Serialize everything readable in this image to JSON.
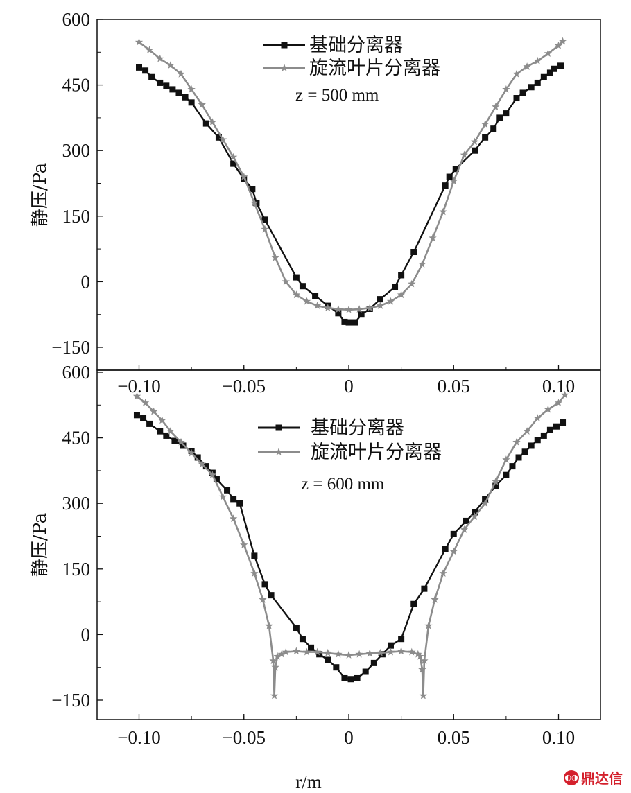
{
  "chart_data": [
    {
      "type": "line",
      "annotation": "z = 500 mm",
      "ylabel": "静压/Pa",
      "xlabel": "",
      "xlim": [
        -0.12,
        0.12
      ],
      "ylim": [
        -200,
        600
      ],
      "xticks": [
        "−0.10",
        "−0.05",
        "0",
        "0.05",
        "0.10"
      ],
      "yticks": [
        "600",
        "450",
        "300",
        "150",
        "0",
        "−150"
      ],
      "legend_position": "top-center",
      "series": [
        {
          "name": "基础分离器",
          "color": "#111111",
          "marker": "square",
          "points": [
            [
              -0.1,
              490
            ],
            [
              -0.097,
              483
            ],
            [
              -0.094,
              468
            ],
            [
              -0.09,
              455
            ],
            [
              -0.087,
              448
            ],
            [
              -0.084,
              440
            ],
            [
              -0.081,
              432
            ],
            [
              -0.078,
              422
            ],
            [
              -0.075,
              410
            ],
            [
              -0.068,
              362
            ],
            [
              -0.062,
              330
            ],
            [
              -0.055,
              270
            ],
            [
              -0.05,
              235
            ],
            [
              -0.046,
              212
            ],
            [
              -0.044,
              180
            ],
            [
              -0.04,
              142
            ],
            [
              -0.025,
              10
            ],
            [
              -0.022,
              -10
            ],
            [
              -0.016,
              -32
            ],
            [
              -0.01,
              -55
            ],
            [
              -0.005,
              -72
            ],
            [
              -0.002,
              -92
            ],
            [
              0.0,
              -93
            ],
            [
              0.003,
              -93
            ],
            [
              0.006,
              -75
            ],
            [
              0.01,
              -62
            ],
            [
              0.015,
              -40
            ],
            [
              0.022,
              -12
            ],
            [
              0.025,
              15
            ],
            [
              0.031,
              68
            ],
            [
              0.046,
              220
            ],
            [
              0.048,
              240
            ],
            [
              0.051,
              258
            ],
            [
              0.06,
              300
            ],
            [
              0.065,
              330
            ],
            [
              0.069,
              350
            ],
            [
              0.072,
              375
            ],
            [
              0.075,
              385
            ],
            [
              0.08,
              420
            ],
            [
              0.083,
              432
            ],
            [
              0.087,
              445
            ],
            [
              0.09,
              455
            ],
            [
              0.093,
              468
            ],
            [
              0.096,
              478
            ],
            [
              0.098,
              487
            ],
            [
              0.101,
              494
            ]
          ]
        },
        {
          "name": "旋流叶片分离器",
          "color": "#8c8c8c",
          "marker": "star",
          "points": [
            [
              -0.1,
              548
            ],
            [
              -0.095,
              530
            ],
            [
              -0.09,
              510
            ],
            [
              -0.085,
              495
            ],
            [
              -0.08,
              475
            ],
            [
              -0.075,
              440
            ],
            [
              -0.07,
              405
            ],
            [
              -0.065,
              365
            ],
            [
              -0.06,
              325
            ],
            [
              -0.055,
              285
            ],
            [
              -0.05,
              240
            ],
            [
              -0.045,
              180
            ],
            [
              -0.04,
              120
            ],
            [
              -0.035,
              55
            ],
            [
              -0.03,
              0
            ],
            [
              -0.025,
              -30
            ],
            [
              -0.02,
              -45
            ],
            [
              -0.015,
              -55
            ],
            [
              -0.01,
              -60
            ],
            [
              -0.005,
              -63
            ],
            [
              0.0,
              -64
            ],
            [
              0.005,
              -63
            ],
            [
              0.01,
              -60
            ],
            [
              0.015,
              -55
            ],
            [
              0.02,
              -45
            ],
            [
              0.025,
              -30
            ],
            [
              0.03,
              -5
            ],
            [
              0.035,
              40
            ],
            [
              0.04,
              100
            ],
            [
              0.045,
              160
            ],
            [
              0.05,
              230
            ],
            [
              0.055,
              290
            ],
            [
              0.06,
              320
            ],
            [
              0.065,
              360
            ],
            [
              0.07,
              400
            ],
            [
              0.075,
              440
            ],
            [
              0.08,
              475
            ],
            [
              0.085,
              492
            ],
            [
              0.09,
              505
            ],
            [
              0.095,
              522
            ],
            [
              0.1,
              540
            ],
            [
              0.102,
              550
            ]
          ]
        }
      ]
    },
    {
      "type": "line",
      "annotation": "z = 600 mm",
      "ylabel": "静压/Pa",
      "xlabel": "r/m",
      "xlim": [
        -0.12,
        0.12
      ],
      "ylim": [
        -200,
        600
      ],
      "xticks": [
        "−0.10",
        "−0.05",
        "0",
        "0.05",
        "0.10"
      ],
      "yticks": [
        "600",
        "450",
        "300",
        "150",
        "0",
        "−150"
      ],
      "legend_position": "top-center",
      "series": [
        {
          "name": "基础分离器",
          "color": "#111111",
          "marker": "square",
          "points": [
            [
              -0.101,
              502
            ],
            [
              -0.098,
              495
            ],
            [
              -0.095,
              482
            ],
            [
              -0.09,
              465
            ],
            [
              -0.087,
              455
            ],
            [
              -0.083,
              443
            ],
            [
              -0.079,
              432
            ],
            [
              -0.075,
              420
            ],
            [
              -0.072,
              405
            ],
            [
              -0.068,
              385
            ],
            [
              -0.065,
              370
            ],
            [
              -0.063,
              355
            ],
            [
              -0.058,
              330
            ],
            [
              -0.055,
              310
            ],
            [
              -0.052,
              300
            ],
            [
              -0.045,
              180
            ],
            [
              -0.04,
              115
            ],
            [
              -0.037,
              90
            ],
            [
              -0.025,
              15
            ],
            [
              -0.022,
              -10
            ],
            [
              -0.018,
              -30
            ],
            [
              -0.014,
              -45
            ],
            [
              -0.01,
              -58
            ],
            [
              -0.006,
              -75
            ],
            [
              -0.002,
              -100
            ],
            [
              0.001,
              -102
            ],
            [
              0.004,
              -100
            ],
            [
              0.008,
              -85
            ],
            [
              0.012,
              -65
            ],
            [
              0.016,
              -45
            ],
            [
              0.02,
              -25
            ],
            [
              0.025,
              -10
            ],
            [
              0.031,
              70
            ],
            [
              0.036,
              105
            ],
            [
              0.046,
              195
            ],
            [
              0.05,
              230
            ],
            [
              0.056,
              260
            ],
            [
              0.06,
              280
            ],
            [
              0.065,
              310
            ],
            [
              0.07,
              340
            ],
            [
              0.075,
              365
            ],
            [
              0.078,
              385
            ],
            [
              0.081,
              405
            ],
            [
              0.084,
              418
            ],
            [
              0.087,
              432
            ],
            [
              0.09,
              445
            ],
            [
              0.093,
              455
            ],
            [
              0.096,
              468
            ],
            [
              0.099,
              476
            ],
            [
              0.102,
              485
            ]
          ]
        },
        {
          "name": "旋流叶片分离器",
          "color": "#8c8c8c",
          "marker": "star",
          "points": [
            [
              -0.101,
              545
            ],
            [
              -0.097,
              530
            ],
            [
              -0.093,
              510
            ],
            [
              -0.089,
              490
            ],
            [
              -0.085,
              465
            ],
            [
              -0.08,
              440
            ],
            [
              -0.075,
              415
            ],
            [
              -0.07,
              390
            ],
            [
              -0.065,
              365
            ],
            [
              -0.06,
              315
            ],
            [
              -0.055,
              265
            ],
            [
              -0.05,
              205
            ],
            [
              -0.045,
              140
            ],
            [
              -0.041,
              80
            ],
            [
              -0.038,
              20
            ],
            [
              -0.036,
              -60
            ],
            [
              -0.0355,
              -140
            ],
            [
              -0.035,
              -75
            ],
            [
              -0.034,
              -50
            ],
            [
              -0.032,
              -45
            ],
            [
              -0.03,
              -40
            ],
            [
              -0.025,
              -38
            ],
            [
              -0.02,
              -40
            ],
            [
              -0.015,
              -40
            ],
            [
              -0.01,
              -42
            ],
            [
              -0.005,
              -45
            ],
            [
              0.0,
              -47
            ],
            [
              0.005,
              -45
            ],
            [
              0.01,
              -43
            ],
            [
              0.015,
              -42
            ],
            [
              0.02,
              -40
            ],
            [
              0.025,
              -38
            ],
            [
              0.03,
              -40
            ],
            [
              0.033,
              -45
            ],
            [
              0.034,
              -50
            ],
            [
              0.035,
              -80
            ],
            [
              0.0355,
              -140
            ],
            [
              0.036,
              -60
            ],
            [
              0.038,
              20
            ],
            [
              0.041,
              80
            ],
            [
              0.045,
              140
            ],
            [
              0.05,
              190
            ],
            [
              0.055,
              240
            ],
            [
              0.06,
              270
            ],
            [
              0.065,
              300
            ],
            [
              0.07,
              350
            ],
            [
              0.075,
              400
            ],
            [
              0.08,
              440
            ],
            [
              0.085,
              465
            ],
            [
              0.09,
              495
            ],
            [
              0.095,
              515
            ],
            [
              0.1,
              530
            ],
            [
              0.103,
              548
            ]
          ]
        }
      ]
    }
  ],
  "watermark": {
    "text": "鼎达信",
    "icon": "dingdaxin-logo-icon",
    "color": "#d4202c"
  }
}
